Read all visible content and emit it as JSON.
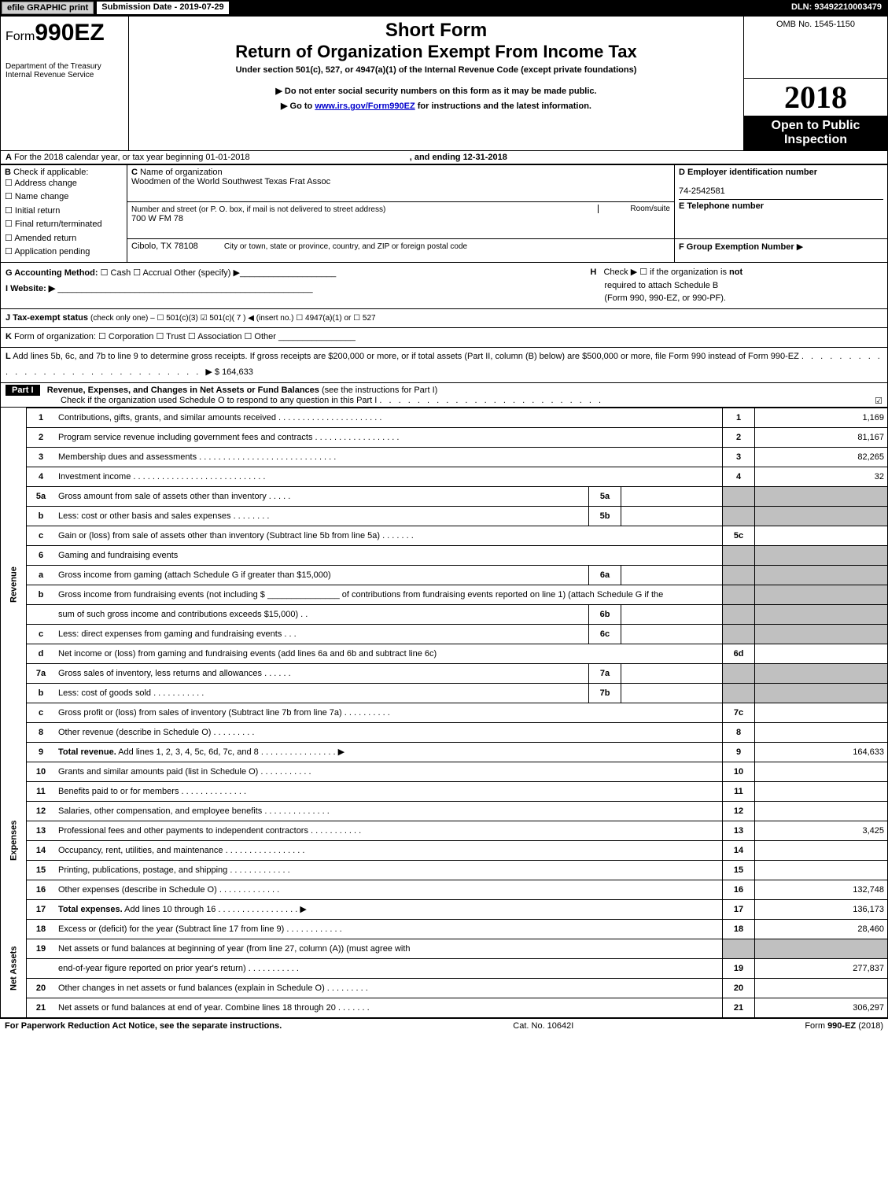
{
  "topbar": {
    "print_btn": "efile GRAPHIC print",
    "submission": "Submission Date - 2019-07-29",
    "dln": "DLN: 93492210003479"
  },
  "header": {
    "form_prefix": "Form",
    "form_number": "990EZ",
    "dept1": "Department of the Treasury",
    "dept2": "Internal Revenue Service",
    "short_form": "Short Form",
    "title": "Return of Organization Exempt From Income Tax",
    "subtitle": "Under section 501(c), 527, or 4947(a)(1) of the Internal Revenue Code (except private foundations)",
    "instruct1": "▶ Do not enter social security numbers on this form as it may be made public.",
    "instruct2_prefix": "▶ Go to ",
    "instruct2_link": "www.irs.gov/Form990EZ",
    "instruct2_suffix": " for instructions and the latest information.",
    "omb": "OMB No. 1545-1150",
    "year": "2018",
    "open1": "Open to Public",
    "open2": "Inspection"
  },
  "lineA": {
    "label_prefix": "A",
    "text1": "For the 2018 calendar year, or tax year beginning 01-01-2018",
    "text2": ", and ending 12-31-2018"
  },
  "boxB": {
    "label": "B",
    "check_label": "Check if applicable:",
    "items": [
      "Address change",
      "Name change",
      "Initial return",
      "Final return/terminated",
      "Amended return",
      "Application pending"
    ]
  },
  "boxC": {
    "label": "C",
    "name_label": "Name of organization",
    "name": "Woodmen of the World Southwest Texas Frat Assoc",
    "addr_label": "Number and street (or P. O. box, if mail is not delivered to street address)",
    "room_label": "Room/suite",
    "addr": "700 W FM 78",
    "city_label": "City or town, state or province, country, and ZIP or foreign postal code",
    "city": "Cibolo, TX  78108"
  },
  "boxD": {
    "label": "D Employer identification number",
    "value": "74-2542581"
  },
  "boxE": {
    "label": "E Telephone number",
    "value": ""
  },
  "boxF": {
    "label": "F Group Exemption Number",
    "arrow": "▶"
  },
  "lineG": {
    "label": "G Accounting Method:",
    "opts": "☐ Cash   ☐ Accrual   Other (specify) ▶",
    "underline": "____________________"
  },
  "lineH": {
    "label": "H",
    "text1": "Check ▶ ☐ if the organization is ",
    "not": "not",
    "text2": " required to attach Schedule B",
    "text3": "(Form 990, 990-EZ, or 990-PF)."
  },
  "lineI": {
    "label": "I Website: ▶",
    "underline": "_____________________________________________________"
  },
  "lineJ": {
    "label": "J Tax-exempt status",
    "text": "(check only one) – ☐ 501(c)(3)  ☑ 501(c)( 7 ) ◀ (insert no.)  ☐ 4947(a)(1) or  ☐ 527"
  },
  "lineK": {
    "label": "K",
    "text": "Form of organization:   ☐ Corporation   ☐ Trust   ☐ Association   ☐ Other ________________"
  },
  "lineL": {
    "label": "L",
    "text1": "Add lines 5b, 6c, and 7b to line 9 to determine gross receipts. If gross receipts are $200,000 or more, or if total assets (Part II, column (B) below) are $500,000 or more, file Form 990 instead of Form 990-EZ",
    "dots": " . . . . . . . . . . . . . . . . . . . . . . . . . . . . . . ",
    "arrow": "▶",
    "amount": "$ 164,633"
  },
  "part1": {
    "tag": "Part I",
    "title": "Revenue, Expenses, and Changes in Net Assets or Fund Balances",
    "paren": "(see the instructions for Part I)",
    "check_text": "Check if the organization used Schedule O to respond to any question in this Part I",
    "dots": " . . . . . . . . . . . . . . . . . . . . . . . .",
    "checkbox": "☑"
  },
  "sections": {
    "revenue": "Revenue",
    "expenses": "Expenses",
    "netassets": "Net Assets"
  },
  "rows": [
    {
      "n": "1",
      "desc": "Contributions, gifts, grants, and similar amounts received . . . . . . . . . . . . . . . . . . . . . .",
      "col": "1",
      "amt": "1,169"
    },
    {
      "n": "2",
      "desc": "Program service revenue including government fees and contracts . . . . . . . . . . . . . . . . . .",
      "col": "2",
      "amt": "81,167"
    },
    {
      "n": "3",
      "desc": "Membership dues and assessments . . . . . . . . . . . . . . . . . . . . . . . . . . . . .",
      "col": "3",
      "amt": "82,265"
    },
    {
      "n": "4",
      "desc": "Investment income . . . . . . . . . . . . . . . . . . . . . . . . . . . .",
      "col": "4",
      "amt": "32"
    },
    {
      "n": "5a",
      "desc": "Gross amount from sale of assets other than inventory . . . . .",
      "sub": "5a",
      "subamt": "",
      "shaded": true
    },
    {
      "n": "b",
      "desc": "Less: cost or other basis and sales expenses . . . . . . . .",
      "sub": "5b",
      "subamt": "",
      "shaded": true
    },
    {
      "n": "c",
      "desc": "Gain or (loss) from sale of assets other than inventory (Subtract line 5b from line 5a)           . . . . . . .",
      "col": "5c",
      "amt": ""
    },
    {
      "n": "6",
      "desc": "Gaming and fundraising events",
      "shaded": true
    },
    {
      "n": "a",
      "desc": "Gross income from gaming (attach Schedule G if greater than $15,000)",
      "sub": "6a",
      "subamt": "",
      "shaded": true
    },
    {
      "n": "b",
      "desc": "Gross income from fundraising events (not including $ _______________ of contributions from fundraising events reported on line 1) (attach Schedule G if the",
      "shaded": true
    },
    {
      "n": "",
      "desc": "sum of such gross income and contributions exceeds $15,000)       . .",
      "sub": "6b",
      "subamt": "",
      "shaded": true
    },
    {
      "n": "c",
      "desc": "Less: direct expenses from gaming and fundraising events       . . .",
      "sub": "6c",
      "subamt": "",
      "shaded": true
    },
    {
      "n": "d",
      "desc": "Net income or (loss) from gaming and fundraising events (add lines 6a and 6b and subtract line 6c)",
      "col": "6d",
      "amt": ""
    },
    {
      "n": "7a",
      "desc": "Gross sales of inventory, less returns and allowances         . . . . . .",
      "sub": "7a",
      "subamt": "",
      "shaded": true
    },
    {
      "n": "b",
      "desc": "Less: cost of goods sold                         . . . . . . . . . . .",
      "sub": "7b",
      "subamt": "",
      "shaded": true
    },
    {
      "n": "c",
      "desc": "Gross profit or (loss) from sales of inventory (Subtract line 7b from line 7a)         . . . . . . . . . .",
      "col": "7c",
      "amt": ""
    },
    {
      "n": "8",
      "desc": "Other revenue (describe in Schedule O)                       . . . . . . . . .",
      "col": "8",
      "amt": ""
    },
    {
      "n": "9",
      "desc": "Total revenue. Add lines 1, 2, 3, 4, 5c, 6d, 7c, and 8         . . . . . . . . . . . . . . . . ▶",
      "col": "9",
      "amt": "164,633",
      "bold": true
    }
  ],
  "exp_rows": [
    {
      "n": "10",
      "desc": "Grants and similar amounts paid (list in Schedule O)           . . . . . . . . . . .",
      "col": "10",
      "amt": ""
    },
    {
      "n": "11",
      "desc": "Benefits paid to or for members                 . . . . . . . . . . . . . .",
      "col": "11",
      "amt": ""
    },
    {
      "n": "12",
      "desc": "Salaries, other compensation, and employee benefits       . . . . . . . . . . . . . .",
      "col": "12",
      "amt": ""
    },
    {
      "n": "13",
      "desc": "Professional fees and other payments to independent contractors       . . . . . . . . . . .",
      "col": "13",
      "amt": "3,425"
    },
    {
      "n": "14",
      "desc": "Occupancy, rent, utilities, and maintenance         . . . . . . . . . . . . . . . . .",
      "col": "14",
      "amt": ""
    },
    {
      "n": "15",
      "desc": "Printing, publications, postage, and shipping           . . . . . . . . . . . . .",
      "col": "15",
      "amt": ""
    },
    {
      "n": "16",
      "desc": "Other expenses (describe in Schedule O)               . . . . . . . . . . . . .",
      "col": "16",
      "amt": "132,748"
    },
    {
      "n": "17",
      "desc": "Total expenses. Add lines 10 through 16           . . . . . . . . . . . . . . . . . ▶",
      "col": "17",
      "amt": "136,173",
      "bold": true
    }
  ],
  "net_rows": [
    {
      "n": "18",
      "desc": "Excess or (deficit) for the year (Subtract line 17 from line 9)         . . . . . . . . . . . .",
      "col": "18",
      "amt": "28,460"
    },
    {
      "n": "19",
      "desc": "Net assets or fund balances at beginning of year (from line 27, column (A)) (must agree with",
      "shaded": true
    },
    {
      "n": "",
      "desc": "end-of-year figure reported on prior year's return)           . . . . . . . . . . .",
      "col": "19",
      "amt": "277,837"
    },
    {
      "n": "20",
      "desc": "Other changes in net assets or fund balances (explain in Schedule O)       . . . . . . . . .",
      "col": "20",
      "amt": ""
    },
    {
      "n": "21",
      "desc": "Net assets or fund balances at end of year. Combine lines 18 through 20       . . . . . . .",
      "col": "21",
      "amt": "306,297"
    }
  ],
  "footer": {
    "left": "For Paperwork Reduction Act Notice, see the separate instructions.",
    "center": "Cat. No. 10642I",
    "right": "Form 990-EZ (2018)"
  }
}
